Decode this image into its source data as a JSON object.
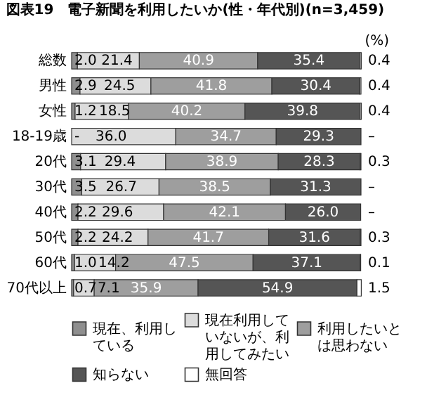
{
  "chart_data": {
    "type": "bar",
    "orientation": "horizontal",
    "stacked": true,
    "title": "図表19　電子新聞を利用したいか(性・年代別)(n=3,459)",
    "annotations": [
      "(%)"
    ],
    "categories": [
      "総数",
      "男性",
      "女性",
      "18-19歳",
      "20代",
      "30代",
      "40代",
      "50代",
      "60代",
      "70代以上"
    ],
    "xlim": [
      0,
      100
    ],
    "tick_labels": "y",
    "grid": false,
    "legend": "bottom",
    "series": [
      {
        "name": "現在、利用している",
        "color": "#8f8f8f",
        "values": [
          2.0,
          2.9,
          1.2,
          null,
          3.1,
          3.5,
          2.2,
          2.2,
          1.0,
          0.7
        ],
        "value_labels": [
          "2.0",
          "2.9",
          "1.2",
          "-",
          "3.1",
          "3.5",
          "2.2",
          "2.2",
          "1.0",
          "0.7"
        ]
      },
      {
        "name": "現在利用していないが、利用してみたい",
        "color": "#dcdcdc",
        "values": [
          21.4,
          24.5,
          18.5,
          36.0,
          29.4,
          26.7,
          29.6,
          24.2,
          14.2,
          7.1
        ],
        "value_labels": [
          "21.4",
          "24.5",
          "18.5",
          "36.0",
          "29.4",
          "26.7",
          "29.6",
          "24.2",
          "14.2",
          "7.1"
        ]
      },
      {
        "name": "利用したいとは思わない",
        "color": "#9e9e9e",
        "values": [
          40.9,
          41.8,
          40.2,
          34.7,
          38.9,
          38.5,
          42.1,
          41.7,
          47.5,
          35.9
        ],
        "value_labels": [
          "40.9",
          "41.8",
          "40.2",
          "34.7",
          "38.9",
          "38.5",
          "42.1",
          "41.7",
          "47.5",
          "35.9"
        ]
      },
      {
        "name": "知らない",
        "color": "#555555",
        "values": [
          35.4,
          30.4,
          39.8,
          29.3,
          28.3,
          31.3,
          26.0,
          31.6,
          37.1,
          54.9
        ],
        "value_labels": [
          "35.4",
          "30.4",
          "39.8",
          "29.3",
          "28.3",
          "31.3",
          "26.0",
          "31.6",
          "37.1",
          "54.9"
        ]
      },
      {
        "name": "無回答",
        "color": "#ffffff",
        "values": [
          0.4,
          0.4,
          0.4,
          null,
          0.3,
          null,
          null,
          0.3,
          0.1,
          1.5
        ],
        "value_labels": [
          "0.4",
          "0.4",
          "0.4",
          "–",
          "0.3",
          "–",
          "–",
          "0.3",
          "0.1",
          "1.5"
        ]
      }
    ]
  }
}
